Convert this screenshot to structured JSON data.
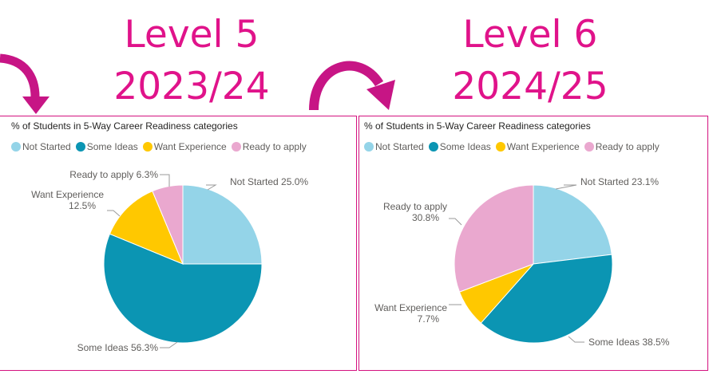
{
  "headings": {
    "left_level": "Level 5",
    "left_year": "2023/24",
    "right_level": "Level 6",
    "right_year": "2024/25"
  },
  "colors": {
    "accent": "#e0138a",
    "not_started": "#94d4e8",
    "some_ideas": "#0b95b3",
    "want_experience": "#ffc800",
    "ready_to_apply": "#eaa8cf"
  },
  "legend": [
    "Not Started",
    "Some Ideas",
    "Want Experience",
    "Ready to apply"
  ],
  "chart_data": [
    {
      "type": "pie",
      "title": "% of Students in 5-Way Career Readiness categories",
      "categories": [
        "Not Started",
        "Some Ideas",
        "Want Experience",
        "Ready to apply"
      ],
      "values": [
        25.0,
        56.3,
        12.5,
        6.3
      ],
      "labels": [
        "Not Started 25.0%",
        "Some Ideas 56.3%",
        "Want Experience\n12.5%",
        "Ready to apply 6.3%"
      ],
      "legend_position": "top-left"
    },
    {
      "type": "pie",
      "title": "% of Students in 5-Way Career Readiness categories",
      "categories": [
        "Not Started",
        "Some Ideas",
        "Want Experience",
        "Ready to apply"
      ],
      "values": [
        23.1,
        38.5,
        7.7,
        30.8
      ],
      "labels": [
        "Not Started 23.1%",
        "Some Ideas 38.5%",
        "Want Experience\n7.7%",
        "Ready to apply\n30.8%"
      ],
      "legend_position": "top-left"
    }
  ]
}
